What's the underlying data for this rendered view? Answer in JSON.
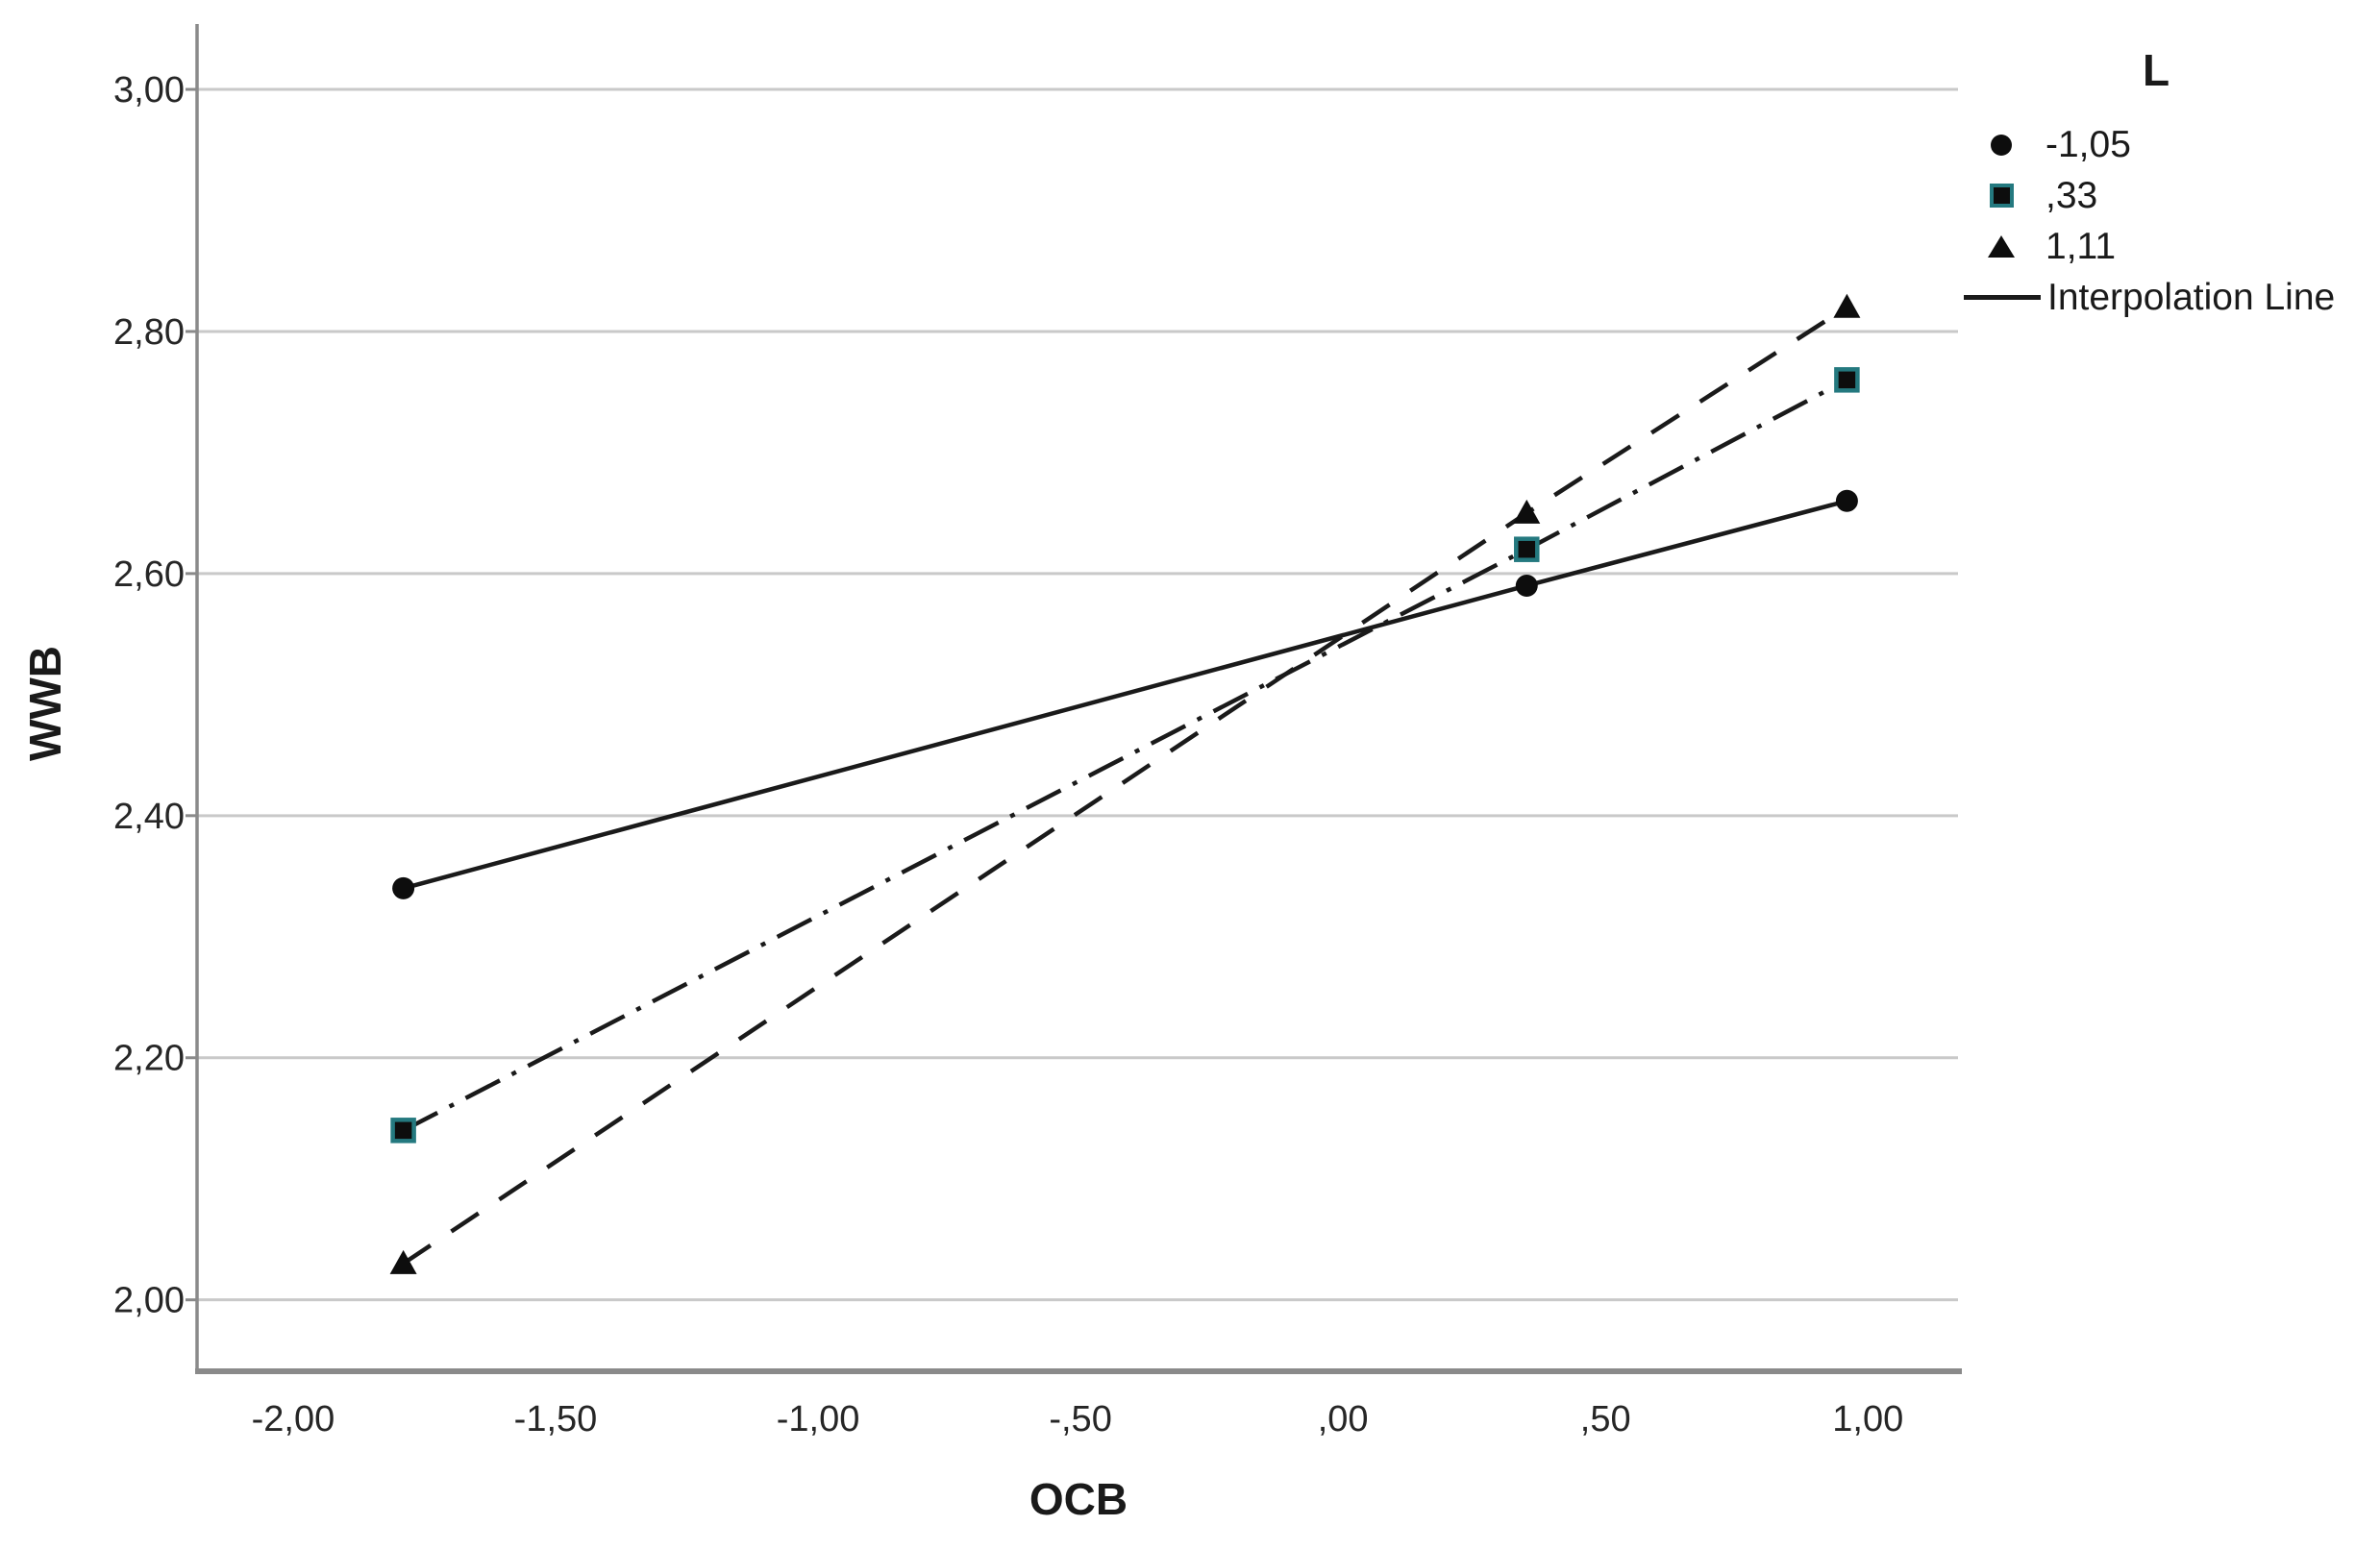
{
  "figure": {
    "background": "#ffffff"
  },
  "chart_data": {
    "type": "line",
    "title": "",
    "xlabel": "OCB",
    "ylabel": "WWB",
    "legend_title": "L",
    "legend_position": "right",
    "grid": "horizontal-only",
    "xlim": [
      -2.183,
      1.179
    ],
    "ylim": [
      1.941,
      3.054
    ],
    "x_ticks": {
      "values": [
        -2.0,
        -1.5,
        -1.0,
        -0.5,
        0.0,
        0.5,
        1.0
      ],
      "labels": [
        "-2,00",
        "-1,50",
        "-1,00",
        "-,50",
        ",00",
        ",50",
        "1,00"
      ]
    },
    "y_ticks": {
      "values": [
        3.0,
        2.8,
        2.6,
        2.4,
        2.2,
        2.0
      ],
      "labels": [
        "3,00",
        "2,80",
        "2,60",
        "2,40",
        "2,20",
        "2,00"
      ]
    },
    "x": [
      -1.79,
      0.35,
      0.96
    ],
    "series": [
      {
        "name": "-1,05",
        "marker": "circle",
        "line_style": "solid",
        "line_color": "#1a1a1a",
        "marker_fill": "#0d0d0d",
        "marker_stroke": "#0d0d0d",
        "values": [
          2.34,
          2.59,
          2.66
        ]
      },
      {
        "name": ",33",
        "marker": "square",
        "line_style": "dash-dot",
        "line_color": "#1a1a1a",
        "marker_fill": "#0d0d0d",
        "marker_stroke": "#24797f",
        "values": [
          2.14,
          2.62,
          2.76
        ]
      },
      {
        "name": "1,11",
        "marker": "triangle",
        "line_style": "dashed",
        "line_color": "#1a1a1a",
        "marker_fill": "#0d0d0d",
        "marker_stroke": "#0d0d0d",
        "values": [
          2.03,
          2.65,
          2.82
        ]
      }
    ],
    "extra_legend": [
      {
        "name": "Interpolation Line",
        "sample": "solid-line"
      }
    ]
  },
  "colors": {
    "gridline": "#c9c9c9",
    "axis_spine": "#8a8a8a",
    "tick_label": "#262626",
    "teal_accent": "#24797f",
    "line_black": "#1a1a1a"
  }
}
